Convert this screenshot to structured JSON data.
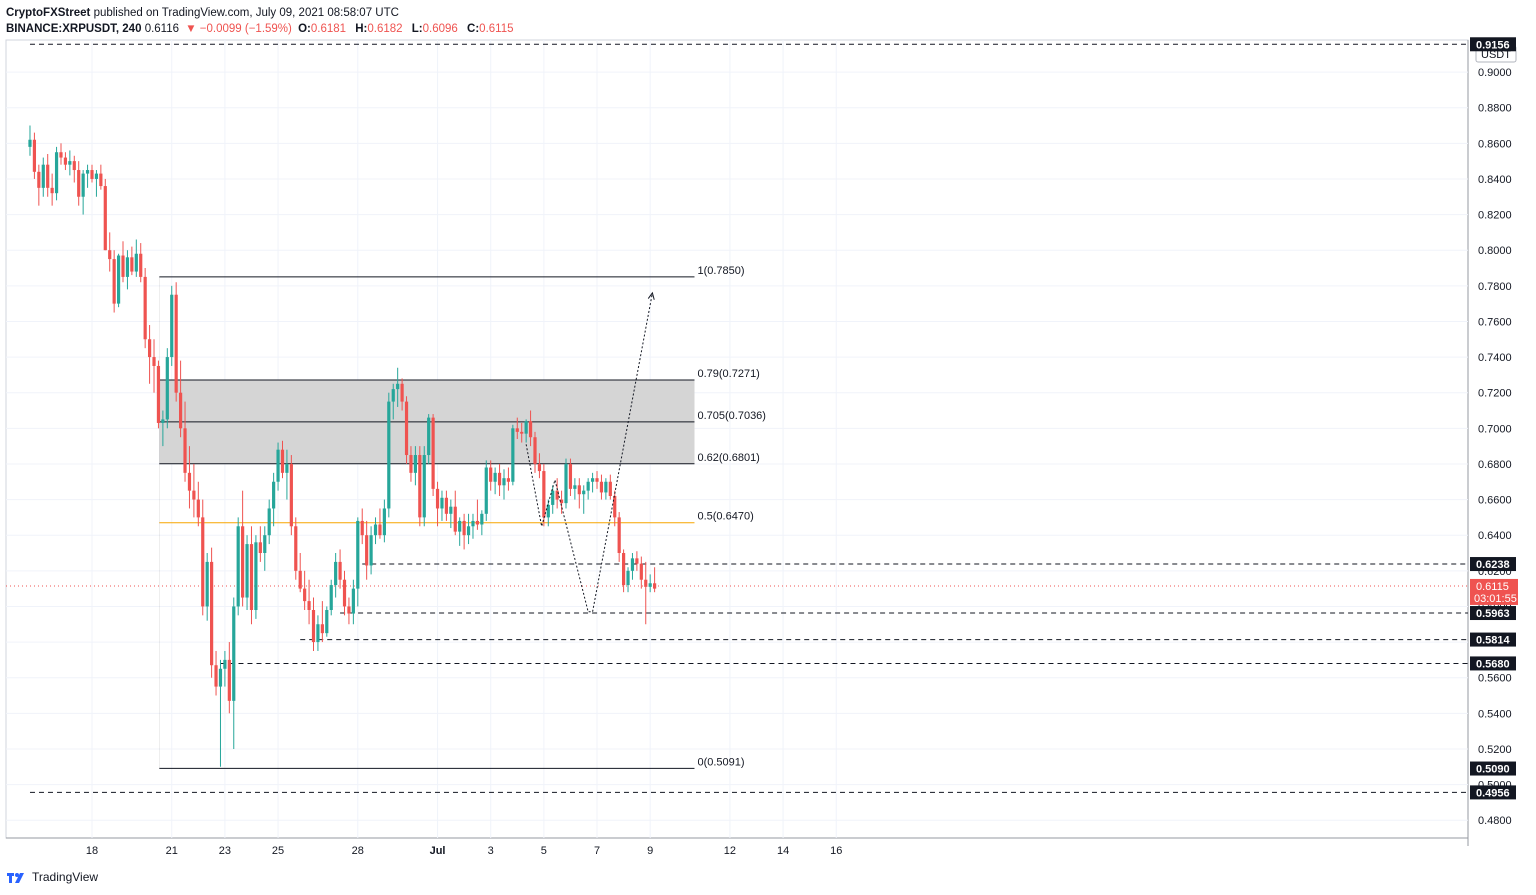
{
  "header": {
    "publisher": "CryptoFXStreet",
    "published_text": "published on TradingView.com, July 09, 2021 08:58:07 UTC",
    "symbol": "BINANCE:XRPUSDT, 240",
    "last": "0.6116",
    "change": "▼ −0.0099 (−1.59%)",
    "o_label": "O:",
    "o_value": "0.6181",
    "h_label": "H:",
    "h_value": "0.6182",
    "l_label": "L:",
    "l_value": "0.6096",
    "c_label": "C:",
    "c_value": "0.6115"
  },
  "footer": {
    "brand": "TradingView"
  },
  "colors": {
    "up": "#26a69a",
    "down": "#ef5350",
    "fib_mid": "#f7a600",
    "zone": "#d3d3d3",
    "last_badge": "#ef5350"
  },
  "chart_data": {
    "type": "candlestick",
    "currency": "USDT",
    "y_range": [
      0.47,
      0.918
    ],
    "y_ticks": [
      "0.4800",
      "0.5000",
      "0.5200",
      "0.5400",
      "0.5600",
      "0.5800",
      "0.6000",
      "0.6200",
      "0.6400",
      "0.6600",
      "0.6800",
      "0.7000",
      "0.7200",
      "0.7400",
      "0.7600",
      "0.7800",
      "0.8000",
      "0.8200",
      "0.8400",
      "0.8600",
      "0.8800",
      "0.9000"
    ],
    "x_range": [
      0,
      175
    ],
    "x_ticks": [
      {
        "label": "18",
        "x": 14
      },
      {
        "label": "21",
        "x": 32
      },
      {
        "label": "23",
        "x": 44
      },
      {
        "label": "25",
        "x": 56
      },
      {
        "label": "28",
        "x": 74
      },
      {
        "label": "Jul",
        "x": 92
      },
      {
        "label": "3",
        "x": 104
      },
      {
        "label": "5",
        "x": 116
      },
      {
        "label": "7",
        "x": 128
      },
      {
        "label": "9",
        "x": 140
      },
      {
        "label": "12",
        "x": 158
      },
      {
        "label": "14",
        "x": 170
      },
      {
        "label": "16",
        "x": 182
      }
    ],
    "price_badges": [
      {
        "label": "0.9156",
        "price": 0.9156
      },
      {
        "label": "0.6238",
        "price": 0.6238
      },
      {
        "label": "0.5963",
        "price": 0.5963
      },
      {
        "label": "0.5814",
        "price": 0.5814
      },
      {
        "label": "0.5680",
        "price": 0.568
      },
      {
        "label": "0.5090",
        "price": 0.509
      },
      {
        "label": "0.4956",
        "price": 0.4956
      }
    ],
    "last_price": {
      "price": "0.6115",
      "countdown": "03:01:55",
      "value": 0.6115
    },
    "fib_levels": [
      {
        "label": "1(0.7850)",
        "price": 0.785
      },
      {
        "label": "0.79(0.7271)",
        "price": 0.7271
      },
      {
        "label": "0.705(0.7036)",
        "price": 0.7036
      },
      {
        "label": "0.62(0.6801)",
        "price": 0.6801
      },
      {
        "label": "0.5(0.6470)",
        "price": 0.647
      },
      {
        "label": "0(0.5091)",
        "price": 0.5091
      }
    ],
    "fib_x_range": [
      29.2,
      150
    ],
    "horizontal_levels": [
      {
        "price": 0.9156,
        "x_from": 0
      },
      {
        "price": 0.6238,
        "x_from": 75
      },
      {
        "price": 0.5963,
        "x_from": 70
      },
      {
        "price": 0.5814,
        "x_from": 61
      },
      {
        "price": 0.568,
        "x_from": 43
      },
      {
        "price": 0.4956,
        "x_from": 0
      }
    ],
    "projection_path": [
      {
        "x": 112,
        "y": 0.691
      },
      {
        "x": 115.5,
        "y": 0.645
      },
      {
        "x": 118.5,
        "y": 0.671
      },
      {
        "x": 126,
        "y": 0.597
      },
      {
        "x": 127,
        "y": 0.597
      },
      {
        "x": 140.5,
        "y": 0.776
      }
    ],
    "candles": [
      [
        0.858,
        0.87,
        0.853,
        0.862
      ],
      [
        0.862,
        0.866,
        0.84,
        0.844
      ],
      [
        0.844,
        0.848,
        0.825,
        0.835
      ],
      [
        0.835,
        0.852,
        0.83,
        0.848
      ],
      [
        0.848,
        0.854,
        0.83,
        0.835
      ],
      [
        0.835,
        0.843,
        0.825,
        0.832
      ],
      [
        0.832,
        0.858,
        0.828,
        0.855
      ],
      [
        0.855,
        0.86,
        0.848,
        0.852
      ],
      [
        0.852,
        0.855,
        0.845,
        0.848
      ],
      [
        0.848,
        0.856,
        0.842,
        0.85
      ],
      [
        0.85,
        0.853,
        0.838,
        0.845
      ],
      [
        0.845,
        0.85,
        0.825,
        0.83
      ],
      [
        0.83,
        0.845,
        0.82,
        0.843
      ],
      [
        0.843,
        0.848,
        0.835,
        0.845
      ],
      [
        0.845,
        0.848,
        0.838,
        0.84
      ],
      [
        0.84,
        0.845,
        0.83,
        0.843
      ],
      [
        0.843,
        0.848,
        0.834,
        0.836
      ],
      [
        0.836,
        0.84,
        0.8,
        0.8
      ],
      [
        0.8,
        0.81,
        0.788,
        0.795
      ],
      [
        0.795,
        0.8,
        0.765,
        0.77
      ],
      [
        0.77,
        0.798,
        0.768,
        0.797
      ],
      [
        0.797,
        0.805,
        0.782,
        0.785
      ],
      [
        0.785,
        0.8,
        0.778,
        0.796
      ],
      [
        0.796,
        0.802,
        0.786,
        0.788
      ],
      [
        0.788,
        0.806,
        0.785,
        0.798
      ],
      [
        0.798,
        0.804,
        0.782,
        0.785
      ],
      [
        0.785,
        0.79,
        0.745,
        0.75
      ],
      [
        0.75,
        0.758,
        0.725,
        0.74
      ],
      [
        0.74,
        0.75,
        0.72,
        0.735
      ],
      [
        0.735,
        0.738,
        0.7,
        0.703
      ],
      [
        0.703,
        0.71,
        0.69,
        0.705
      ],
      [
        0.705,
        0.745,
        0.7,
        0.74
      ],
      [
        0.74,
        0.78,
        0.735,
        0.775
      ],
      [
        0.775,
        0.782,
        0.715,
        0.72
      ],
      [
        0.72,
        0.738,
        0.695,
        0.7
      ],
      [
        0.7,
        0.715,
        0.67,
        0.675
      ],
      [
        0.675,
        0.69,
        0.655,
        0.665
      ],
      [
        0.665,
        0.68,
        0.65,
        0.66
      ],
      [
        0.66,
        0.67,
        0.645,
        0.65
      ],
      [
        0.65,
        0.66,
        0.595,
        0.6
      ],
      [
        0.6,
        0.63,
        0.592,
        0.625
      ],
      [
        0.625,
        0.633,
        0.56,
        0.567
      ],
      [
        0.567,
        0.575,
        0.55,
        0.555
      ],
      [
        0.555,
        0.57,
        0.51,
        0.565
      ],
      [
        0.565,
        0.575,
        0.555,
        0.57
      ],
      [
        0.57,
        0.58,
        0.54,
        0.547
      ],
      [
        0.547,
        0.605,
        0.52,
        0.6
      ],
      [
        0.6,
        0.65,
        0.595,
        0.645
      ],
      [
        0.645,
        0.665,
        0.6,
        0.605
      ],
      [
        0.605,
        0.64,
        0.598,
        0.635
      ],
      [
        0.635,
        0.645,
        0.59,
        0.598
      ],
      [
        0.598,
        0.64,
        0.593,
        0.636
      ],
      [
        0.636,
        0.645,
        0.625,
        0.63
      ],
      [
        0.63,
        0.645,
        0.62,
        0.64
      ],
      [
        0.64,
        0.66,
        0.635,
        0.655
      ],
      [
        0.655,
        0.675,
        0.645,
        0.67
      ],
      [
        0.67,
        0.692,
        0.665,
        0.688
      ],
      [
        0.688,
        0.693,
        0.672,
        0.675
      ],
      [
        0.675,
        0.688,
        0.66,
        0.68
      ],
      [
        0.68,
        0.685,
        0.64,
        0.645
      ],
      [
        0.645,
        0.65,
        0.615,
        0.62
      ],
      [
        0.62,
        0.63,
        0.608,
        0.61
      ],
      [
        0.61,
        0.62,
        0.598,
        0.603
      ],
      [
        0.603,
        0.615,
        0.59,
        0.598
      ],
      [
        0.598,
        0.605,
        0.575,
        0.58
      ],
      [
        0.58,
        0.595,
        0.575,
        0.59
      ],
      [
        0.59,
        0.603,
        0.58,
        0.585
      ],
      [
        0.585,
        0.6,
        0.583,
        0.598
      ],
      [
        0.598,
        0.615,
        0.595,
        0.612
      ],
      [
        0.612,
        0.63,
        0.605,
        0.625
      ],
      [
        0.625,
        0.632,
        0.61,
        0.615
      ],
      [
        0.615,
        0.62,
        0.595,
        0.6
      ],
      [
        0.6,
        0.605,
        0.59,
        0.596
      ],
      [
        0.596,
        0.615,
        0.59,
        0.61
      ],
      [
        0.61,
        0.65,
        0.6,
        0.648
      ],
      [
        0.648,
        0.655,
        0.635,
        0.64
      ],
      [
        0.64,
        0.648,
        0.615,
        0.623
      ],
      [
        0.623,
        0.645,
        0.618,
        0.64
      ],
      [
        0.64,
        0.65,
        0.635,
        0.646
      ],
      [
        0.646,
        0.655,
        0.638,
        0.64
      ],
      [
        0.64,
        0.66,
        0.636,
        0.655
      ],
      [
        0.655,
        0.72,
        0.65,
        0.715
      ],
      [
        0.715,
        0.725,
        0.705,
        0.722
      ],
      [
        0.722,
        0.734,
        0.712,
        0.725
      ],
      [
        0.725,
        0.728,
        0.71,
        0.715
      ],
      [
        0.715,
        0.718,
        0.68,
        0.685
      ],
      [
        0.685,
        0.69,
        0.67,
        0.675
      ],
      [
        0.675,
        0.69,
        0.668,
        0.685
      ],
      [
        0.685,
        0.69,
        0.645,
        0.65
      ],
      [
        0.65,
        0.69,
        0.645,
        0.685
      ],
      [
        0.685,
        0.708,
        0.68,
        0.706
      ],
      [
        0.706,
        0.708,
        0.662,
        0.666
      ],
      [
        0.666,
        0.67,
        0.645,
        0.655
      ],
      [
        0.655,
        0.665,
        0.648,
        0.661
      ],
      [
        0.661,
        0.665,
        0.648,
        0.652
      ],
      [
        0.652,
        0.66,
        0.644,
        0.656
      ],
      [
        0.656,
        0.665,
        0.64,
        0.642
      ],
      [
        0.642,
        0.65,
        0.634,
        0.648
      ],
      [
        0.648,
        0.652,
        0.632,
        0.64
      ],
      [
        0.64,
        0.652,
        0.635,
        0.645
      ],
      [
        0.645,
        0.652,
        0.638,
        0.648
      ],
      [
        0.648,
        0.66,
        0.643,
        0.646
      ],
      [
        0.646,
        0.654,
        0.64,
        0.652
      ],
      [
        0.652,
        0.682,
        0.648,
        0.678
      ],
      [
        0.678,
        0.682,
        0.665,
        0.67
      ],
      [
        0.67,
        0.678,
        0.663,
        0.675
      ],
      [
        0.675,
        0.68,
        0.662,
        0.668
      ],
      [
        0.668,
        0.677,
        0.66,
        0.672
      ],
      [
        0.672,
        0.678,
        0.665,
        0.67
      ],
      [
        0.67,
        0.702,
        0.668,
        0.7
      ],
      [
        0.7,
        0.706,
        0.694,
        0.698
      ],
      [
        0.698,
        0.703,
        0.692,
        0.697
      ],
      [
        0.697,
        0.705,
        0.692,
        0.704
      ],
      [
        0.704,
        0.71,
        0.69,
        0.695
      ],
      [
        0.695,
        0.698,
        0.675,
        0.68
      ],
      [
        0.68,
        0.686,
        0.672,
        0.676
      ],
      [
        0.676,
        0.68,
        0.645,
        0.65
      ],
      [
        0.65,
        0.66,
        0.645,
        0.657
      ],
      [
        0.657,
        0.668,
        0.652,
        0.665
      ],
      [
        0.665,
        0.672,
        0.655,
        0.66
      ],
      [
        0.66,
        0.665,
        0.652,
        0.658
      ],
      [
        0.658,
        0.683,
        0.655,
        0.68
      ],
      [
        0.68,
        0.683,
        0.662,
        0.666
      ],
      [
        0.666,
        0.672,
        0.66,
        0.668
      ],
      [
        0.668,
        0.672,
        0.655,
        0.663
      ],
      [
        0.663,
        0.668,
        0.652,
        0.665
      ],
      [
        0.665,
        0.672,
        0.66,
        0.67
      ],
      [
        0.67,
        0.675,
        0.664,
        0.672
      ],
      [
        0.672,
        0.676,
        0.666,
        0.67
      ],
      [
        0.67,
        0.674,
        0.66,
        0.664
      ],
      [
        0.664,
        0.672,
        0.66,
        0.67
      ],
      [
        0.67,
        0.674,
        0.66,
        0.662
      ],
      [
        0.662,
        0.665,
        0.645,
        0.65
      ],
      [
        0.65,
        0.653,
        0.625,
        0.63
      ],
      [
        0.63,
        0.632,
        0.608,
        0.612
      ],
      [
        0.612,
        0.622,
        0.608,
        0.62
      ],
      [
        0.62,
        0.63,
        0.615,
        0.627
      ],
      [
        0.627,
        0.631,
        0.62,
        0.624
      ],
      [
        0.624,
        0.628,
        0.61,
        0.615
      ],
      [
        0.615,
        0.625,
        0.59,
        0.611
      ],
      [
        0.611,
        0.618,
        0.608,
        0.613
      ],
      [
        0.613,
        0.622,
        0.608,
        0.61
      ]
    ]
  }
}
